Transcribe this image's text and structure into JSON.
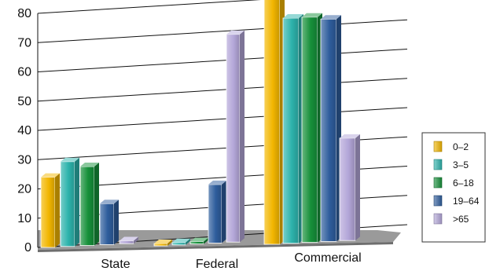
{
  "chart_data": {
    "type": "bar",
    "style": "3d-clustered-column",
    "categories": [
      "State",
      "Federal",
      "Commercial"
    ],
    "series": [
      {
        "name": "0–2",
        "color": "#F2B600",
        "values": [
          24,
          0,
          84
        ]
      },
      {
        "name": "3–5",
        "color": "#2DB3AC",
        "values": [
          29,
          0,
          77
        ]
      },
      {
        "name": "6–18",
        "color": "#16903A",
        "values": [
          27,
          0,
          77
        ]
      },
      {
        "name": "19–64",
        "color": "#2E5D9C",
        "values": [
          14,
          20,
          76
        ]
      },
      {
        "name": ">65",
        "color": "#B3A6D8",
        "values": [
          1,
          71,
          35
        ]
      }
    ],
    "yticks": [
      "0",
      "10",
      "20",
      "30",
      "40",
      "50",
      "60",
      "70",
      "80"
    ],
    "ylim": [
      0,
      80
    ],
    "title": "",
    "xlabel": "",
    "ylabel": "",
    "grid": true,
    "legend_position": "right"
  }
}
